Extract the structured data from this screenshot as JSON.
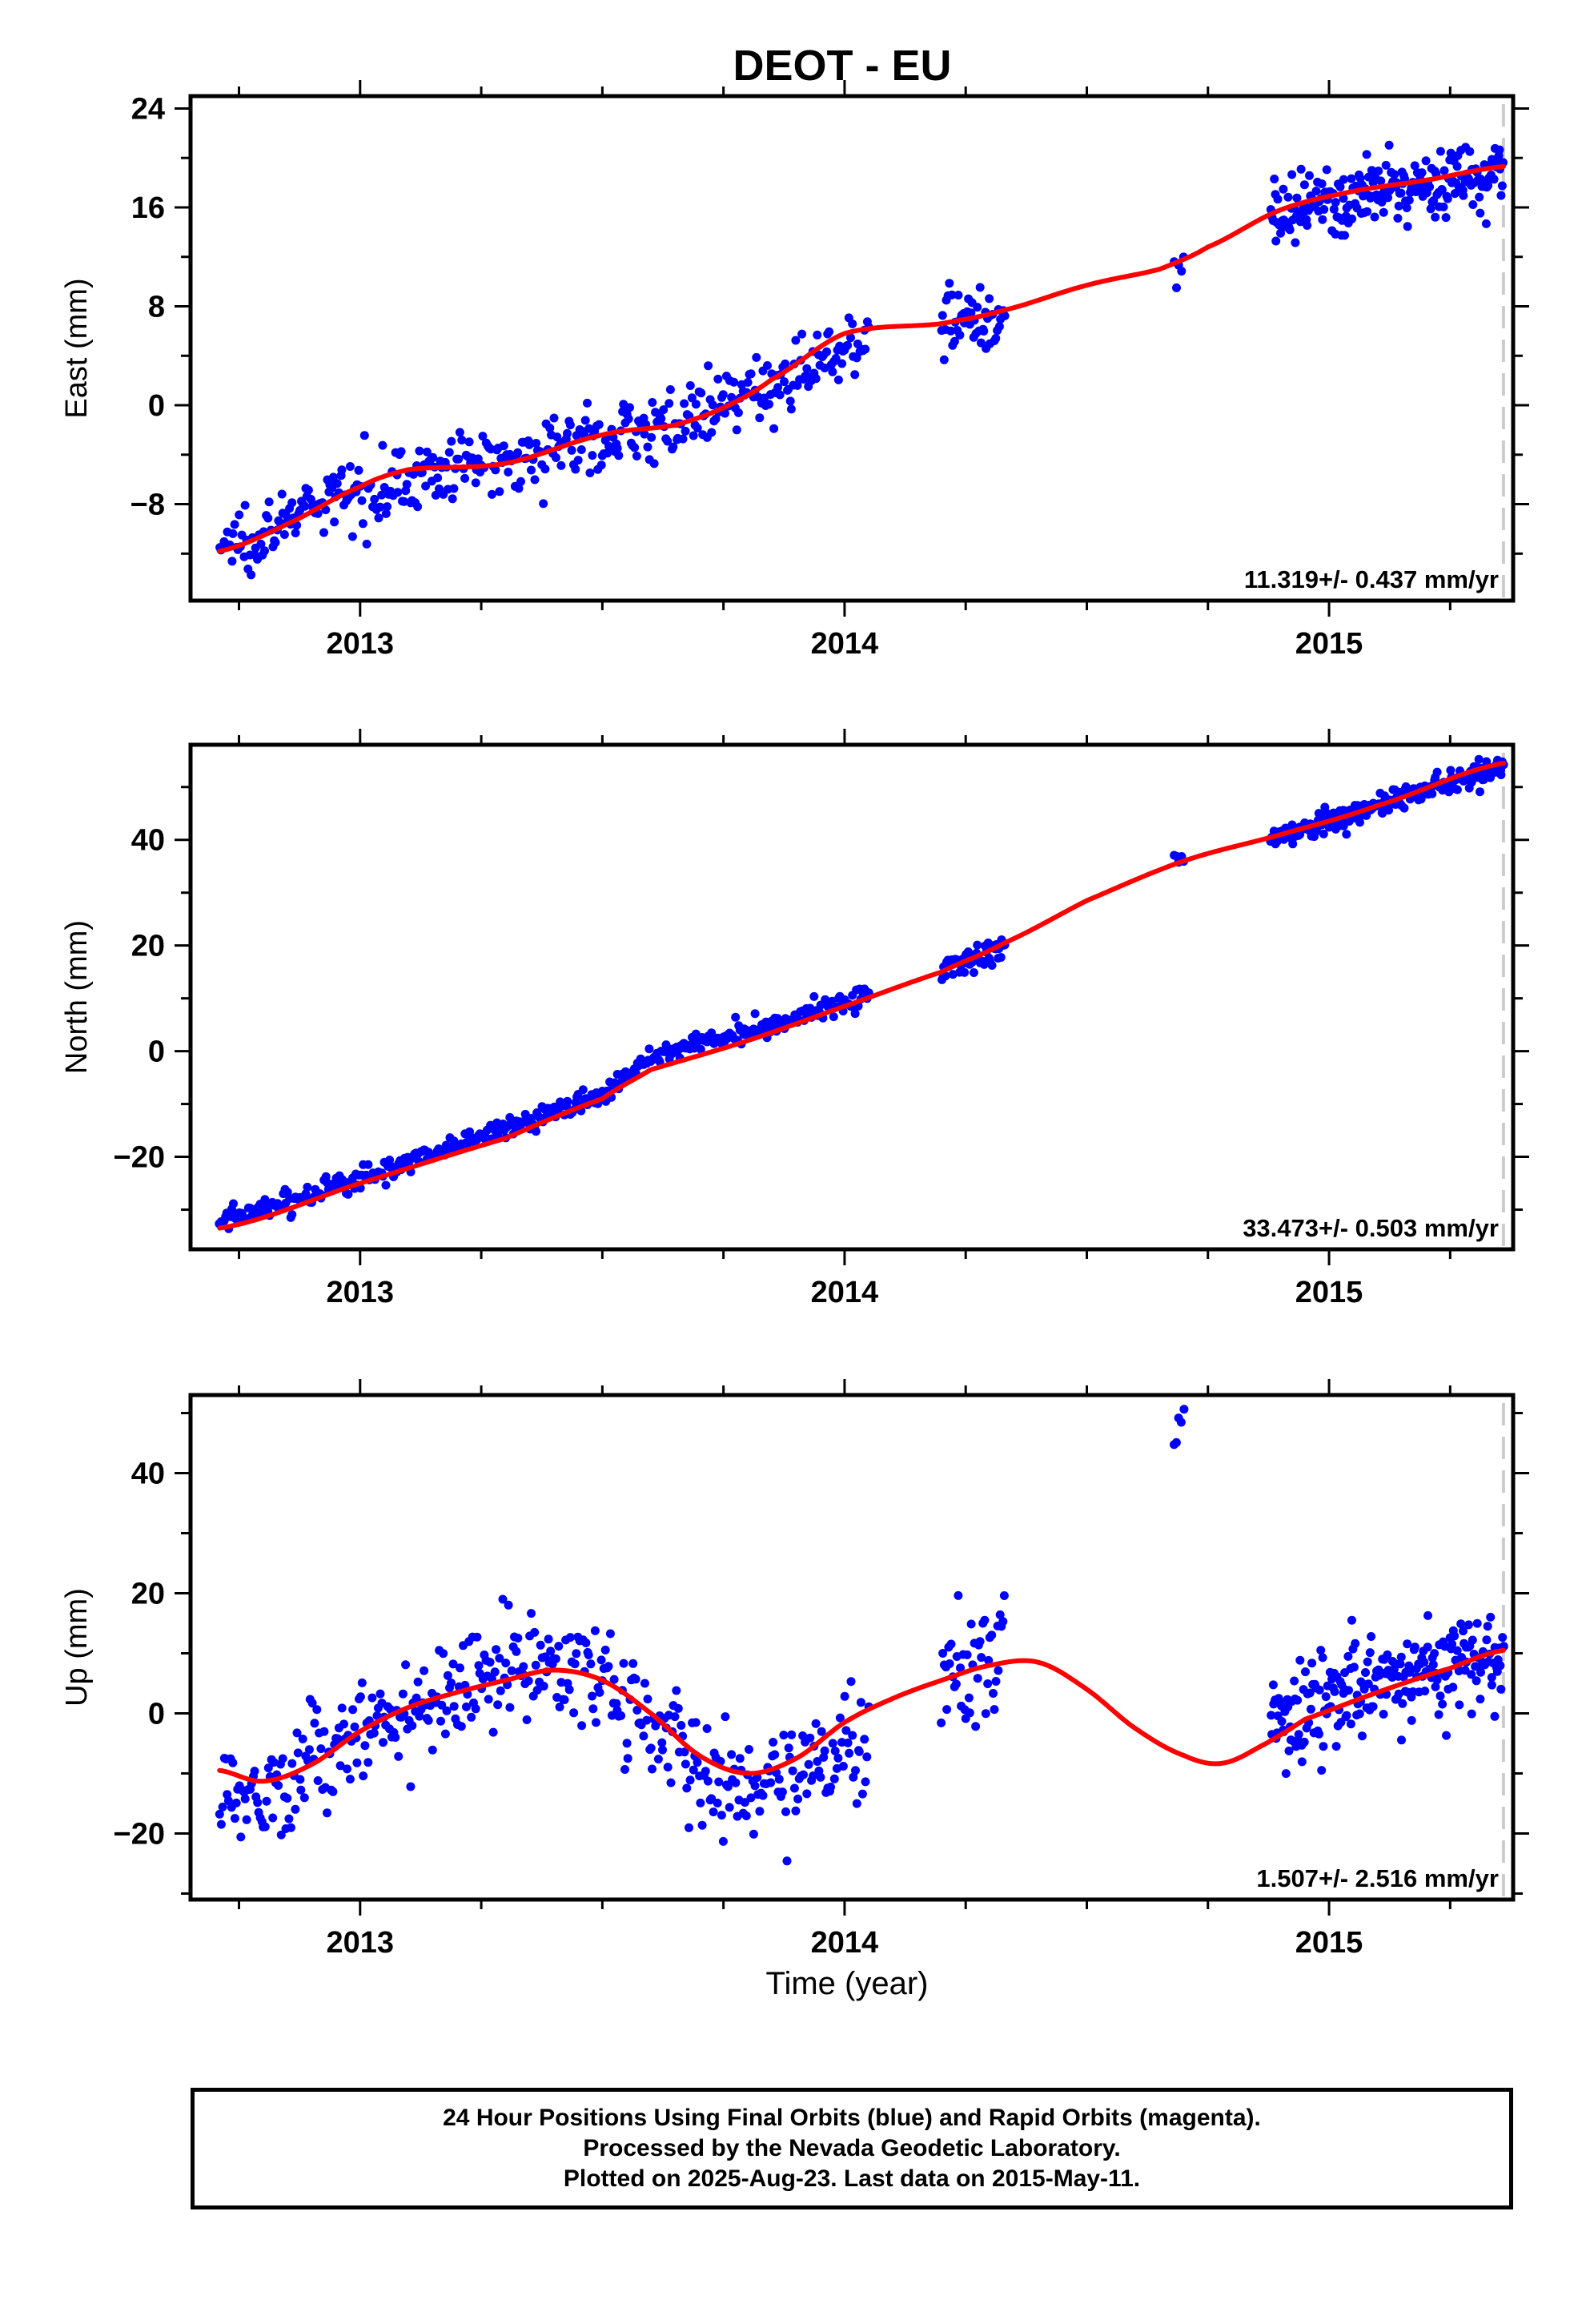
{
  "title": "DEOT - EU",
  "xlabel": "Time (year)",
  "caption": {
    "line1": "24 Hour Positions Using Final Orbits (blue) and Rapid Orbits (magenta).",
    "line2": "Processed by the Nevada Geodetic Laboratory.",
    "line3": "Plotted on 2025-Aug-23. Last data on 2015-May-11."
  },
  "colors": {
    "final_orbits": "#0000ff",
    "fit": "#ff0000",
    "last_data_marker": "#cccccc"
  },
  "chart_data": [
    {
      "type": "scatter",
      "ylabel": "East (mm)",
      "rate_label": "11.319+/- 0.437 mm/yr",
      "xlim": [
        2012.65,
        2015.38
      ],
      "ylim": [
        -15.8,
        25
      ],
      "yticks": [
        24,
        16,
        8,
        0,
        -8
      ],
      "yticklabels": [
        "24",
        "16",
        "8",
        "0",
        "−8"
      ],
      "xticks": [
        2013,
        2014,
        2015
      ],
      "xticklabels": [
        "2013",
        "2014",
        "2015"
      ],
      "last_data": 2015.36,
      "series": [
        {
          "name": "Final Orbits",
          "color": "#0000ff",
          "segments": [
            {
              "x_start": 2012.71,
              "x_end": 2014.05,
              "anchors": [
                [
                  2012.71,
                  -11.5
                ],
                [
                  2013.0,
                  -6.8
                ],
                [
                  2013.3,
                  -4.2
                ],
                [
                  2013.7,
                  -1.0
                ],
                [
                  2013.9,
                  2.5
                ],
                [
                  2014.05,
                  6.0
                ]
              ],
              "scatter": 1.3,
              "count": 430
            },
            {
              "x_start": 2014.2,
              "x_end": 2014.33,
              "anchors": [
                [
                  2014.2,
                  7.0
                ],
                [
                  2014.33,
                  7.0
                ]
              ],
              "scatter": 1.2,
              "count": 50
            },
            {
              "x_start": 2014.68,
              "x_end": 2014.7,
              "anchors": [
                [
                  2014.68,
                  11.0
                ],
                [
                  2014.7,
                  11.5
                ]
              ],
              "scatter": 1.0,
              "count": 5
            },
            {
              "x_start": 2014.88,
              "x_end": 2015.36,
              "anchors": [
                [
                  2014.88,
                  14.8
                ],
                [
                  2015.05,
                  16.7
                ],
                [
                  2015.36,
                  19.0
                ]
              ],
              "scatter": 1.4,
              "count": 230
            }
          ]
        }
      ],
      "fit": [
        [
          2012.71,
          -11.8
        ],
        [
          2012.85,
          -9.6
        ],
        [
          2013.0,
          -6.6
        ],
        [
          2013.1,
          -5.2
        ],
        [
          2013.3,
          -4.7
        ],
        [
          2013.5,
          -2.4
        ],
        [
          2013.65,
          -1.6
        ],
        [
          2013.75,
          -0.2
        ],
        [
          2013.85,
          2.1
        ],
        [
          2014.0,
          5.8
        ],
        [
          2014.2,
          6.6
        ],
        [
          2014.33,
          7.7
        ],
        [
          2014.5,
          9.7
        ],
        [
          2014.65,
          11.0
        ],
        [
          2014.75,
          12.8
        ],
        [
          2014.9,
          15.8
        ],
        [
          2015.05,
          17.3
        ],
        [
          2015.2,
          18.2
        ],
        [
          2015.36,
          19.3
        ]
      ]
    },
    {
      "type": "scatter",
      "ylabel": "North (mm)",
      "rate_label": "33.473+/- 0.503 mm/yr",
      "xlim": [
        2012.65,
        2015.38
      ],
      "ylim": [
        -37.5,
        58
      ],
      "yticks": [
        40,
        20,
        0,
        -20
      ],
      "yticklabels": [
        "40",
        "20",
        "0",
        "−20"
      ],
      "xticks": [
        2013,
        2014,
        2015
      ],
      "xticklabels": [
        "2013",
        "2014",
        "2015"
      ],
      "last_data": 2015.36,
      "series": [
        {
          "name": "Final Orbits",
          "color": "#0000ff",
          "segments": [
            {
              "x_start": 2012.71,
              "x_end": 2014.05,
              "anchors": [
                [
                  2012.71,
                  -32.5
                ],
                [
                  2013.0,
                  -24.0
                ],
                [
                  2013.5,
                  -8.5
                ],
                [
                  2013.6,
                  -1.0
                ],
                [
                  2014.05,
                  10.5
                ]
              ],
              "scatter": 1.1,
              "count": 430
            },
            {
              "x_start": 2014.2,
              "x_end": 2014.33,
              "anchors": [
                [
                  2014.2,
                  15.0
                ],
                [
                  2014.33,
                  19.5
                ]
              ],
              "scatter": 1.3,
              "count": 50
            },
            {
              "x_start": 2014.68,
              "x_end": 2014.7,
              "anchors": [
                [
                  2014.68,
                  36.0
                ],
                [
                  2014.7,
                  37.0
                ]
              ],
              "scatter": 0.8,
              "count": 5
            },
            {
              "x_start": 2014.88,
              "x_end": 2015.36,
              "anchors": [
                [
                  2014.88,
                  40.0
                ],
                [
                  2015.36,
                  54.0
                ]
              ],
              "scatter": 1.1,
              "count": 230
            }
          ]
        }
      ],
      "fit": [
        [
          2012.71,
          -33.5
        ],
        [
          2013.0,
          -25.0
        ],
        [
          2013.3,
          -16.5
        ],
        [
          2013.5,
          -9.0
        ],
        [
          2013.6,
          -3.5
        ],
        [
          2013.8,
          2.0
        ],
        [
          2014.0,
          8.5
        ],
        [
          2014.2,
          15.0
        ],
        [
          2014.33,
          20.5
        ],
        [
          2014.5,
          28.5
        ],
        [
          2014.7,
          36.0
        ],
        [
          2014.9,
          41.0
        ],
        [
          2015.1,
          46.5
        ],
        [
          2015.36,
          54.5
        ]
      ]
    },
    {
      "type": "scatter",
      "ylabel": "Up (mm)",
      "rate_label": "1.507+/- 2.516 mm/yr",
      "xlim": [
        2012.65,
        2015.38
      ],
      "ylim": [
        -31,
        53
      ],
      "yticks": [
        40,
        20,
        0,
        -20
      ],
      "yticklabels": [
        "40",
        "20",
        "0",
        "−20"
      ],
      "xticks": [
        2013,
        2014,
        2015
      ],
      "xticklabels": [
        "2013",
        "2014",
        "2015"
      ],
      "last_data": 2015.36,
      "series": [
        {
          "name": "Final Orbits",
          "color": "#0000ff",
          "segments": [
            {
              "x_start": 2012.71,
              "x_end": 2014.05,
              "anchors": [
                [
                  2012.71,
                  -14.0
                ],
                [
                  2012.85,
                  -11.0
                ],
                [
                  2013.0,
                  -3.0
                ],
                [
                  2013.2,
                  4.0
                ],
                [
                  2013.35,
                  9.0
                ],
                [
                  2013.5,
                  5.0
                ],
                [
                  2013.65,
                  -5.0
                ],
                [
                  2013.8,
                  -14.0
                ],
                [
                  2013.95,
                  -6.0
                ],
                [
                  2014.05,
                  -4.0
                ]
              ],
              "scatter": 4.5,
              "count": 430
            },
            {
              "x_start": 2014.2,
              "x_end": 2014.33,
              "anchors": [
                [
                  2014.2,
                  5.0
                ],
                [
                  2014.33,
                  10.0
                ]
              ],
              "scatter": 6.0,
              "count": 45
            },
            {
              "x_start": 2014.68,
              "x_end": 2014.7,
              "anchors": [
                [
                  2014.68,
                  45.0
                ],
                [
                  2014.7,
                  50.0
                ]
              ],
              "scatter": 2.5,
              "count": 5
            },
            {
              "x_start": 2014.88,
              "x_end": 2015.36,
              "anchors": [
                [
                  2014.88,
                  -1.0
                ],
                [
                  2015.1,
                  5.0
                ],
                [
                  2015.36,
                  10.0
                ]
              ],
              "scatter": 4.0,
              "count": 230
            }
          ]
        }
      ],
      "fit": [
        [
          2012.71,
          -9.5
        ],
        [
          2012.8,
          -11.3
        ],
        [
          2012.9,
          -8.5
        ],
        [
          2013.0,
          -3.0
        ],
        [
          2013.1,
          1.0
        ],
        [
          2013.2,
          3.5
        ],
        [
          2013.3,
          5.5
        ],
        [
          2013.4,
          7.2
        ],
        [
          2013.5,
          5.5
        ],
        [
          2013.6,
          0.0
        ],
        [
          2013.7,
          -7.0
        ],
        [
          2013.8,
          -10.0
        ],
        [
          2013.9,
          -7.5
        ],
        [
          2014.0,
          -1.5
        ],
        [
          2014.1,
          2.5
        ],
        [
          2014.2,
          5.5
        ],
        [
          2014.3,
          8.0
        ],
        [
          2014.4,
          8.5
        ],
        [
          2014.5,
          4.0
        ],
        [
          2014.6,
          -2.5
        ],
        [
          2014.7,
          -7.0
        ],
        [
          2014.78,
          -8.3
        ],
        [
          2014.87,
          -5.0
        ],
        [
          2014.95,
          -1.0
        ],
        [
          2015.1,
          3.5
        ],
        [
          2015.25,
          7.5
        ],
        [
          2015.36,
          10.5
        ]
      ]
    }
  ]
}
